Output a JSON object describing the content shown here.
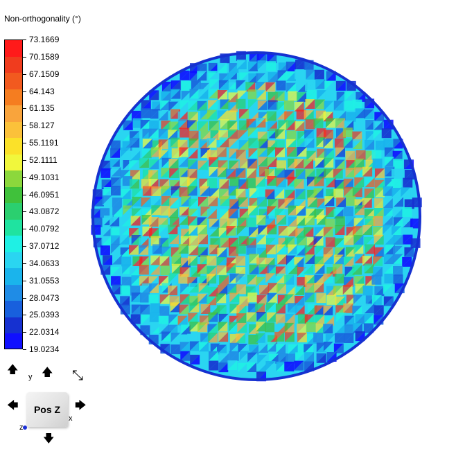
{
  "legend": {
    "title": "Non-orthogonality (°)",
    "values": [
      "73.1669",
      "70.1589",
      "67.1509",
      "64.143",
      "61.135",
      "58.127",
      "55.1191",
      "52.1111",
      "49.1031",
      "46.0951",
      "43.0872",
      "40.0792",
      "37.0712",
      "34.0633",
      "31.0553",
      "28.0473",
      "25.0393",
      "22.0314",
      "19.0234"
    ],
    "colors": [
      "#ff1a1a",
      "#f03c1e",
      "#f25a1f",
      "#f57d20",
      "#f9a43c",
      "#fbc13a",
      "#fbe129",
      "#f1f73c",
      "#8cd83c",
      "#40c13b",
      "#2bcf6f",
      "#1fe3a0",
      "#1ff0e4",
      "#2ad5f1",
      "#1ab4ec",
      "#1f8ce6",
      "#1860dd",
      "#1631d0",
      "#1010ff"
    ]
  },
  "view": {
    "cube_label": "Pos Z",
    "axis_x": "x",
    "axis_y": "y",
    "axis_z": "z",
    "arrows": {
      "top_left": "🡅",
      "top": "🡅",
      "top_right": "⤡",
      "left": "🡄",
      "right": "🡆",
      "bottom": "🡇"
    }
  }
}
